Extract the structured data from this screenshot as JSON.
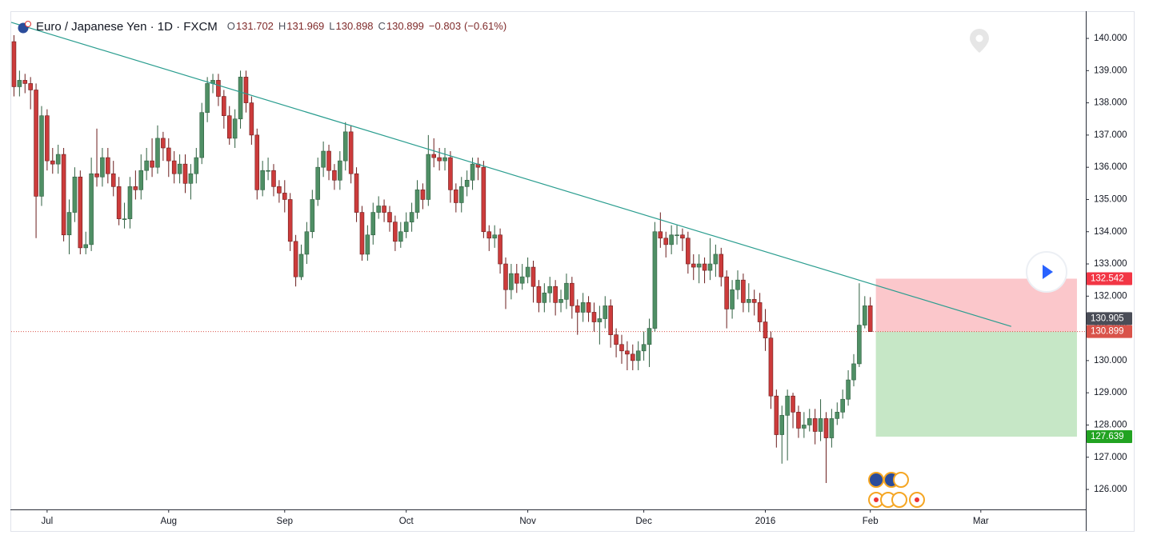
{
  "chart_data": {
    "type": "candlestick",
    "header": {
      "symbol": "Euro / Japanese Yen · 1D · FXCM",
      "fields": [
        {
          "key": "O",
          "value": 131.702
        },
        {
          "key": "H",
          "value": 131.969
        },
        {
          "key": "L",
          "value": 130.898
        },
        {
          "key": "C",
          "value": 130.899
        }
      ],
      "change": {
        "value": -0.803,
        "label": "−0.803"
      },
      "change_pct": {
        "value": -0.61,
        "label": "(−0.61%)"
      }
    },
    "up_color": "#4f8f65",
    "down_color": "#cc3b3b",
    "open": [
      139.9,
      138.5,
      138.7,
      138.6,
      138.4,
      135.1,
      137.6,
      136.2,
      136.1,
      136.4,
      133.9,
      134.6,
      135.7,
      133.5,
      133.6,
      135.8,
      135.7,
      136.3,
      135.8,
      135.4,
      134.4,
      134.4,
      135.4,
      135.3,
      135.9,
      136.2,
      136.0,
      136.9,
      136.6,
      136.2,
      135.8,
      136.1,
      135.5,
      135.8,
      136.3,
      137.7,
      138.6,
      138.7,
      138.2,
      137.6,
      136.9,
      137.5,
      138.8,
      138.0,
      137.0,
      135.3,
      135.9,
      135.9,
      135.4,
      135.2,
      135.0,
      133.7,
      132.6,
      133.3,
      134.0,
      135.0,
      136.0,
      136.5,
      135.9,
      135.6,
      136.2,
      137.1,
      135.8,
      134.6,
      133.3,
      133.9,
      134.6,
      134.8,
      134.6,
      134.3,
      133.7,
      134.0,
      134.3,
      134.6,
      135.3,
      135.0,
      136.4,
      136.3,
      136.2,
      136.3,
      135.3,
      134.9,
      135.4,
      135.6,
      136.1,
      136.0,
      134.0,
      133.8,
      133.9,
      133.0,
      132.2,
      132.7,
      132.4,
      132.6,
      132.9,
      132.3,
      131.8,
      132.1,
      132.3,
      131.8,
      131.9,
      132.4,
      131.7,
      131.5,
      131.8,
      131.5,
      131.2,
      131.3,
      131.7,
      130.8,
      130.5,
      130.3,
      130.2,
      130.0,
      130.3,
      130.5,
      131.0,
      134.0,
      133.8,
      133.6,
      133.9,
      133.9,
      133.8,
      133.0,
      132.9,
      133.0,
      132.8,
      133.0,
      133.3,
      132.6,
      131.6,
      132.2,
      132.5,
      131.8,
      131.9,
      131.8,
      131.2,
      130.7,
      128.9,
      127.7,
      128.3,
      128.9,
      128.4,
      127.9,
      128.0,
      128.2,
      127.8,
      128.2,
      127.6,
      128.2,
      128.4,
      128.8,
      129.4,
      129.9,
      131.1,
      131.702
    ],
    "high": [
      140.1,
      139.0,
      138.9,
      138.8,
      138.6,
      137.9,
      137.8,
      136.6,
      136.7,
      136.6,
      135.0,
      136.0,
      135.9,
      134.0,
      136.3,
      137.2,
      136.6,
      136.6,
      136.2,
      135.7,
      134.9,
      135.7,
      135.9,
      136.4,
      136.6,
      136.9,
      137.3,
      137.1,
      136.9,
      136.5,
      136.4,
      136.4,
      136.1,
      136.6,
      138.0,
      138.8,
      138.9,
      138.9,
      138.4,
      137.9,
      137.8,
      139.0,
      139.0,
      138.2,
      137.2,
      136.2,
      136.3,
      136.1,
      135.6,
      135.6,
      135.2,
      133.9,
      133.6,
      134.3,
      135.3,
      136.3,
      136.8,
      136.7,
      136.1,
      136.5,
      137.4,
      137.3,
      136.0,
      134.8,
      134.2,
      134.9,
      135.1,
      135.0,
      134.8,
      134.5,
      134.3,
      134.6,
      134.9,
      135.6,
      135.5,
      137.0,
      136.9,
      136.6,
      136.6,
      136.5,
      135.5,
      135.7,
      135.9,
      136.3,
      136.3,
      136.2,
      134.2,
      134.2,
      134.1,
      133.2,
      133.0,
      133.0,
      133.0,
      133.2,
      133.1,
      132.5,
      132.4,
      132.6,
      132.5,
      132.2,
      132.7,
      132.6,
      131.9,
      132.1,
      132.0,
      131.8,
      131.7,
      132.0,
      131.9,
      131.0,
      130.8,
      130.6,
      130.5,
      130.6,
      130.9,
      131.3,
      134.3,
      134.6,
      134.0,
      134.2,
      134.2,
      134.1,
      134.0,
      133.3,
      133.3,
      133.2,
      133.8,
      133.6,
      133.5,
      132.8,
      132.5,
      132.8,
      132.7,
      132.4,
      132.2,
      132.1,
      131.6,
      130.9,
      129.1,
      128.6,
      129.1,
      129.0,
      128.6,
      128.4,
      128.5,
      128.5,
      128.8,
      128.4,
      128.5,
      128.7,
      129.1,
      129.7,
      130.2,
      132.4,
      132.0,
      131.969
    ],
    "low": [
      138.2,
      138.2,
      138.3,
      137.8,
      133.8,
      134.8,
      135.9,
      135.8,
      135.8,
      133.7,
      133.3,
      134.3,
      133.3,
      133.3,
      133.4,
      135.4,
      135.4,
      135.5,
      135.1,
      134.2,
      134.1,
      134.1,
      135.0,
      135.0,
      135.6,
      135.7,
      135.8,
      136.2,
      135.7,
      135.5,
      135.5,
      135.2,
      135.0,
      135.5,
      136.1,
      137.4,
      138.3,
      137.9,
      137.2,
      136.7,
      136.6,
      137.2,
      137.7,
      136.7,
      135.0,
      135.1,
      135.6,
      135.1,
      134.9,
      134.6,
      133.4,
      132.3,
      132.5,
      133.0,
      133.8,
      134.8,
      135.7,
      135.6,
      135.3,
      135.3,
      135.9,
      135.5,
      134.3,
      133.1,
      133.1,
      133.6,
      134.4,
      134.3,
      134.0,
      133.4,
      133.5,
      133.8,
      134.0,
      134.4,
      134.7,
      134.8,
      136.0,
      135.9,
      135.9,
      134.9,
      134.6,
      134.6,
      135.1,
      135.3,
      135.6,
      133.8,
      133.4,
      133.5,
      132.7,
      131.6,
      131.9,
      132.1,
      132.2,
      132.4,
      131.8,
      131.5,
      131.5,
      131.8,
      131.4,
      131.5,
      131.6,
      131.3,
      130.8,
      131.2,
      131.2,
      130.9,
      130.5,
      131.0,
      130.4,
      130.1,
      129.9,
      129.7,
      129.7,
      129.7,
      130.0,
      129.8,
      130.9,
      133.5,
      133.2,
      133.3,
      133.6,
      133.4,
      132.7,
      132.5,
      132.4,
      132.4,
      132.5,
      132.6,
      132.3,
      131.0,
      131.3,
      131.9,
      131.5,
      131.5,
      131.4,
      130.9,
      130.3,
      128.5,
      127.3,
      126.8,
      126.9,
      127.9,
      127.6,
      127.6,
      127.8,
      127.4,
      127.5,
      126.2,
      127.3,
      128.0,
      128.2,
      128.6,
      129.2,
      129.8,
      131.0,
      130.898
    ],
    "close": [
      138.5,
      138.7,
      138.6,
      138.4,
      135.1,
      137.6,
      136.2,
      136.1,
      136.4,
      133.9,
      134.6,
      135.7,
      133.5,
      133.6,
      135.8,
      135.7,
      136.3,
      135.8,
      135.4,
      134.4,
      134.4,
      135.4,
      135.3,
      135.9,
      136.2,
      136.0,
      136.9,
      136.6,
      136.2,
      135.8,
      136.1,
      135.5,
      135.8,
      136.3,
      137.7,
      138.6,
      138.7,
      138.2,
      137.6,
      136.9,
      137.5,
      138.8,
      138.0,
      137.0,
      135.3,
      135.9,
      135.9,
      135.4,
      135.2,
      135.0,
      133.7,
      132.6,
      133.3,
      134.0,
      135.0,
      136.0,
      136.5,
      135.9,
      135.6,
      136.2,
      137.1,
      135.8,
      134.6,
      133.3,
      133.9,
      134.6,
      134.8,
      134.6,
      134.3,
      133.7,
      134.0,
      134.3,
      134.6,
      135.3,
      135.0,
      136.4,
      136.3,
      136.2,
      136.3,
      135.3,
      134.9,
      135.4,
      135.6,
      136.1,
      136.0,
      134.0,
      133.8,
      133.9,
      133.0,
      132.2,
      132.7,
      132.4,
      132.6,
      132.9,
      132.3,
      131.8,
      132.1,
      132.3,
      131.8,
      131.9,
      132.4,
      131.7,
      131.5,
      131.8,
      131.5,
      131.2,
      131.3,
      131.7,
      130.8,
      130.5,
      130.3,
      130.2,
      130.0,
      130.3,
      130.5,
      131.0,
      134.0,
      133.8,
      133.6,
      133.9,
      133.9,
      133.8,
      133.0,
      132.9,
      133.0,
      132.8,
      133.0,
      133.3,
      132.6,
      131.6,
      132.2,
      132.5,
      131.8,
      131.9,
      131.8,
      131.2,
      130.7,
      128.9,
      127.7,
      128.3,
      128.9,
      128.4,
      127.9,
      128.0,
      128.2,
      127.8,
      128.2,
      127.6,
      128.2,
      128.4,
      128.8,
      129.4,
      129.9,
      131.1,
      131.7,
      130.899
    ],
    "xlim": [
      -0.5,
      194
    ],
    "xticks": [
      {
        "value": 6,
        "label": "Jul"
      },
      {
        "value": 28,
        "label": "Aug"
      },
      {
        "value": 49,
        "label": "Sep"
      },
      {
        "value": 71,
        "label": "Oct"
      },
      {
        "value": 93,
        "label": "Nov"
      },
      {
        "value": 114,
        "label": "Dec"
      },
      {
        "value": 136,
        "label": "2016"
      },
      {
        "value": 155,
        "label": "Feb"
      },
      {
        "value": 175,
        "label": "Mar"
      }
    ],
    "ylim": [
      125.38,
      140.82
    ],
    "yticks": [
      {
        "value": 126,
        "label": "126.000"
      },
      {
        "value": 127,
        "label": "127.000"
      },
      {
        "value": 128,
        "label": "128.000"
      },
      {
        "value": 129,
        "label": "129.000"
      },
      {
        "value": 130,
        "label": "130.000"
      },
      {
        "value": 131,
        "label": "131.000"
      },
      {
        "value": 132,
        "label": "132.000"
      },
      {
        "value": 133,
        "label": "133.000"
      },
      {
        "value": 134,
        "label": "134.000"
      },
      {
        "value": 135,
        "label": "135.000"
      },
      {
        "value": 136,
        "label": "136.000"
      },
      {
        "value": 137,
        "label": "137.000"
      },
      {
        "value": 138,
        "label": "138.000"
      },
      {
        "value": 139,
        "label": "139.000"
      },
      {
        "value": 140,
        "label": "140.000"
      }
    ],
    "trendline": {
      "x": [
        -0.5,
        180.5
      ],
      "y": [
        140.5,
        131.06
      ],
      "color": "#2a9d8f"
    },
    "position": {
      "x": [
        156,
        192.4
      ],
      "entry": 130.899,
      "stop": 132.542,
      "target": 127.639,
      "stop_color": "#f23645",
      "target_color": "#22a322"
    },
    "last_price": 130.899,
    "last_price_color": "#d9534a",
    "countdown_price": 130.905
  }
}
